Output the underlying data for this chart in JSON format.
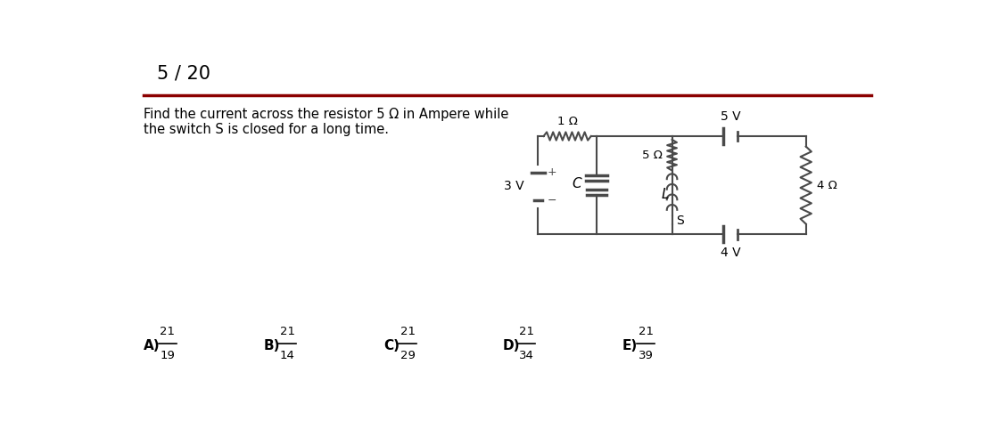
{
  "title": "5 / 20",
  "question_line1": "Find the current across the resistor 5 Ω in Ampere while",
  "question_line2": "the switch S is closed for a long time.",
  "separator_color": "#8b0000",
  "background_color": "#ffffff",
  "text_color": "#000000",
  "answers": [
    {
      "label": "A)",
      "num": "21",
      "den": "19"
    },
    {
      "label": "B)",
      "num": "21",
      "den": "14"
    },
    {
      "label": "C)",
      "num": "21",
      "den": "29"
    },
    {
      "label": "D)",
      "num": "21",
      "den": "34"
    },
    {
      "label": "E)",
      "num": "21",
      "den": "39"
    }
  ],
  "circuit": {
    "resistor_1": "1 Ω",
    "resistor_5": "5 Ω",
    "resistor_4": "4 Ω",
    "inductor_label": "L",
    "switch_label": "S",
    "capacitor_label": "C",
    "voltage_3": "3 V",
    "voltage_5": "5 V",
    "voltage_4": "4 V"
  }
}
